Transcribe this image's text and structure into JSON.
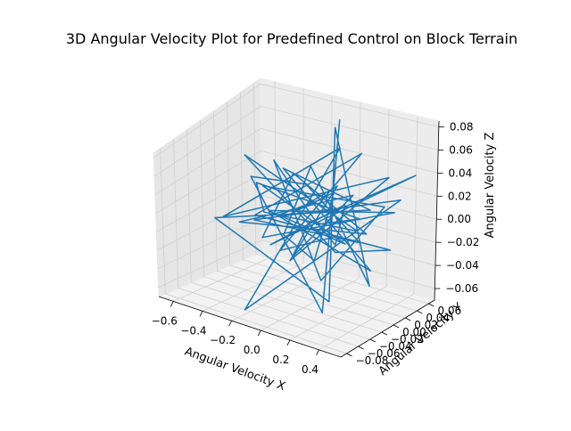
{
  "chart_data": {
    "type": "line3d",
    "title": "3D Angular Velocity Plot for Predefined Control on Block Terrain",
    "xlabel": "Angular Velocity X",
    "ylabel": "Angular Velocity Y",
    "zlabel": "Angular Velocity Z",
    "xticks": [
      "−0.6",
      "−0.4",
      "−0.2",
      "0.0",
      "0.2",
      "0.4"
    ],
    "yticks": [
      "−0.08",
      "−0.06",
      "−0.04",
      "−0.02",
      "0.00",
      "0.02",
      "0.04",
      "0.06"
    ],
    "zticks": [
      "−0.06",
      "−0.04",
      "−0.02",
      "0.00",
      "0.02",
      "0.04",
      "0.06",
      "0.08"
    ],
    "xlim": [
      -0.7,
      0.55
    ],
    "ylim": [
      -0.09,
      0.07
    ],
    "zlim": [
      -0.07,
      0.085
    ],
    "grid": true,
    "series": [
      {
        "color": "#1f77b4",
        "points": [
          [
            0.0,
            0.0,
            0.0
          ],
          [
            0.35,
            -0.01,
            0.02
          ],
          [
            -0.55,
            0.03,
            0.01
          ],
          [
            -0.05,
            -0.07,
            0.035
          ],
          [
            0.12,
            0.04,
            -0.015
          ],
          [
            -0.4,
            -0.02,
            0.06
          ],
          [
            0.05,
            0.02,
            -0.03
          ],
          [
            0.48,
            0.01,
            -0.01
          ],
          [
            -0.2,
            -0.05,
            0.02
          ],
          [
            0.1,
            0.05,
            0.05
          ],
          [
            -0.32,
            0.015,
            -0.04
          ],
          [
            0.22,
            -0.03,
            0.005
          ],
          [
            -0.1,
            0.06,
            0.07
          ],
          [
            0.3,
            -0.06,
            -0.05
          ],
          [
            -0.45,
            0.0,
            0.03
          ],
          [
            0.02,
            -0.02,
            0.045
          ],
          [
            0.18,
            0.03,
            -0.02
          ],
          [
            -0.25,
            -0.04,
            0.01
          ],
          [
            0.4,
            0.045,
            0.02
          ],
          [
            -0.15,
            -0.08,
            -0.06
          ],
          [
            0.08,
            0.02,
            0.065
          ],
          [
            -0.6,
            -0.01,
            -0.01
          ],
          [
            0.25,
            0.06,
            0.03
          ],
          [
            -0.05,
            -0.03,
            -0.025
          ],
          [
            0.15,
            0.0,
            0.04
          ],
          [
            -0.35,
            0.04,
            -0.015
          ],
          [
            0.32,
            -0.045,
            0.055
          ],
          [
            -0.12,
            0.025,
            -0.045
          ],
          [
            0.06,
            -0.065,
            0.015
          ],
          [
            -0.28,
            0.055,
            0.025
          ],
          [
            0.44,
            -0.015,
            -0.035
          ],
          [
            -0.02,
            0.035,
            0.075
          ],
          [
            0.2,
            -0.025,
            -0.055
          ],
          [
            -0.5,
            -0.045,
            0.005
          ],
          [
            0.1,
            0.065,
            -0.005
          ],
          [
            -0.18,
            -0.01,
            0.05
          ],
          [
            0.28,
            0.025,
            -0.04
          ],
          [
            -0.08,
            -0.055,
            0.03
          ],
          [
            0.38,
            0.04,
            0.01
          ],
          [
            -0.42,
            0.01,
            -0.03
          ],
          [
            0.0,
            -0.035,
            0.06
          ],
          [
            0.14,
            0.05,
            -0.02
          ],
          [
            -0.22,
            -0.07,
            0.02
          ],
          [
            0.26,
            0.0,
            0.035
          ],
          [
            -0.3,
            0.03,
            -0.05
          ],
          [
            0.04,
            -0.02,
            0.01
          ],
          [
            0.46,
            0.055,
            0.04
          ],
          [
            -0.14,
            -0.04,
            -0.01
          ],
          [
            0.16,
            0.01,
            0.02
          ],
          [
            -0.06,
            0.045,
            -0.035
          ],
          [
            0.2,
            -0.05,
            0.03
          ],
          [
            -0.38,
            0.02,
            0.04
          ],
          [
            0.08,
            -0.01,
            -0.045
          ],
          [
            0.33,
            0.035,
            0.015
          ],
          [
            -0.1,
            -0.06,
            0.055
          ],
          [
            0.12,
            0.02,
            -0.02
          ],
          [
            -0.26,
            0.0,
            0.0
          ],
          [
            0.0,
            0.01,
            0.02
          ]
        ]
      }
    ]
  }
}
